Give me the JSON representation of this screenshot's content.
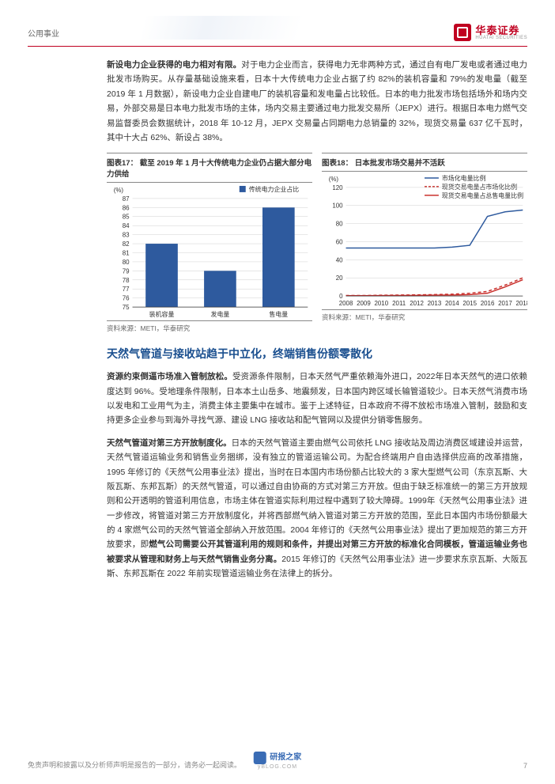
{
  "header": {
    "category": "公用事业"
  },
  "logo": {
    "cn": "华泰证券",
    "en": "HUATAI SECURITIES"
  },
  "intro_para": {
    "bold_lead": "新设电力企业获得的电力相对有限。",
    "text": "对于电力企业而言，获得电力无非两种方式，通过自有电厂发电或者通过电力批发市场购买。从存量基础设施来看，日本十大传统电力企业占据了约 82%的装机容量和 79%的发电量（截至 2019 年 1 月数据），新设电力企业自建电厂的装机容量和发电量占比较低。日本的电力批发市场包括场外和场内交易，外部交易是日本电力批发市场的主体，场内交易主要通过电力批发交易所（JEPX）进行。根据日本电力燃气交易监督委员会数据统计，2018 年 10-12 月，JEPX 交易量占同期电力总销量的 32%，现货交易量 637 亿千瓦时，其中十大占 62%、新设占 38%。"
  },
  "chart17": {
    "title": "图表17：  截至 2019 年 1 月十大传统电力企业仍占据大部分电力供给",
    "type": "bar",
    "ylabel": "(%)",
    "legend": "传统电力企业占比",
    "categories": [
      "装机容量",
      "发电量",
      "售电量"
    ],
    "values": [
      82,
      79,
      86
    ],
    "ylim": [
      75,
      87
    ],
    "yticks": [
      75,
      76,
      77,
      78,
      79,
      80,
      81,
      82,
      83,
      84,
      85,
      86,
      87
    ],
    "bar_color": "#2e5a9e",
    "grid_color": "#d0d0d0",
    "bg_color": "#ffffff",
    "bar_width": 0.55,
    "axis_fontsize": 8,
    "source": "资料来源：METI，华泰研究"
  },
  "chart18": {
    "title": "图表18：  日本批发市场交易并不活跃",
    "type": "line",
    "ylabel": "(%)",
    "categories": [
      "2008",
      "2009",
      "2010",
      "2011",
      "2012",
      "2013",
      "2014",
      "2015",
      "2016",
      "2017",
      "2018"
    ],
    "series": [
      {
        "name": "市场化电量比例",
        "color": "#2e5a9e",
        "style": "solid",
        "values": [
          53,
          53,
          53,
          53,
          53,
          53,
          54,
          56,
          88,
          93,
          95
        ]
      },
      {
        "name": "现货交易电量占市场化比例",
        "color": "#c9302c",
        "style": "dashed",
        "values": [
          0.5,
          0.5,
          0.8,
          1,
          1.2,
          1.5,
          2,
          3,
          5,
          12,
          20
        ]
      },
      {
        "name": "现货交易电量占总售电量比例",
        "color": "#c9302c",
        "style": "solid",
        "values": [
          0.3,
          0.3,
          0.4,
          0.5,
          0.6,
          0.8,
          1,
          1.5,
          3,
          10,
          18
        ]
      }
    ],
    "ylim": [
      0,
      120
    ],
    "yticks": [
      0,
      20,
      40,
      60,
      80,
      100,
      120
    ],
    "grid_color": "#d0d0d0",
    "bg_color": "#ffffff",
    "axis_fontsize": 8,
    "source": "资料来源：METI，华泰研究"
  },
  "section_title": "天然气管道与接收站趋于中立化，终端销售份额零散化",
  "para2": {
    "bold_lead": "资源约束倒逼市场准入管制放松。",
    "text": "受资源条件限制，日本天然气严重依赖海外进口，2022年日本天然气的进口依赖度达到 96%。受地理条件限制，日本本土山岳多、地震频发，日本国内跨区域长输管道较少。日本天然气消费市场以发电和工业用气为主，消费主体主要集中在城市。鉴于上述特征，日本政府不得不放松市场准入管制，鼓励和支持更多企业参与到海外寻找气源、建设 LNG 接收站和配气管网以及提供分销零售服务。"
  },
  "para3": {
    "bold_lead": "天然气管道对第三方开放制度化。",
    "text_a": "日本的天然气管道主要由燃气公司依托 LNG 接收站及周边消费区域建设并运营，天然气管道运输业务和销售业务捆绑，没有独立的管道运输公司。为配合终端用户自由选择供应商的改革措施，1995 年修订的《天然气公用事业法》提出，当时在日本国内市场份额占比较大的 3 家大型燃气公司（东京瓦斯、大阪瓦斯、东邦瓦斯）的天然气管道，可以通过自由协商的方式对第三方开放。但由于缺乏标准统一的第三方开放规则和公开透明的管道利用信息，市场主体在管道实际利用过程中遇到了较大障碍。1999年《天然气公用事业法》进一步修改，将管道对第三方开放制度化，并将西部燃气纳入管道对第三方开放的范围，至此日本国内市场份额最大的 4 家燃气公司的天然气管道全部纳入开放范围。2004 年修订的《天然气公用事业法》提出了更加规范的第三方开放要求，即",
    "bold_mid": "燃气公司需要公开其管道利用的规则和条件，并提出对第三方开放的标准化合同模板，管道运输业务也被要求从管理和财务上与天然气销售业务分离。",
    "text_b": "2015 年修订的《天然气公用事业法》进一步要求东京瓦斯、大阪瓦斯、东邦瓦斯在 2022 年前实现管道运输业务在法律上的拆分。"
  },
  "footer": {
    "disclaimer": "免责声明和披露以及分析师声明是报告的一部分，请务必一起阅读。",
    "watermark": "研报之家",
    "watermark_sub": "yBLOG.COM",
    "page": "7"
  }
}
